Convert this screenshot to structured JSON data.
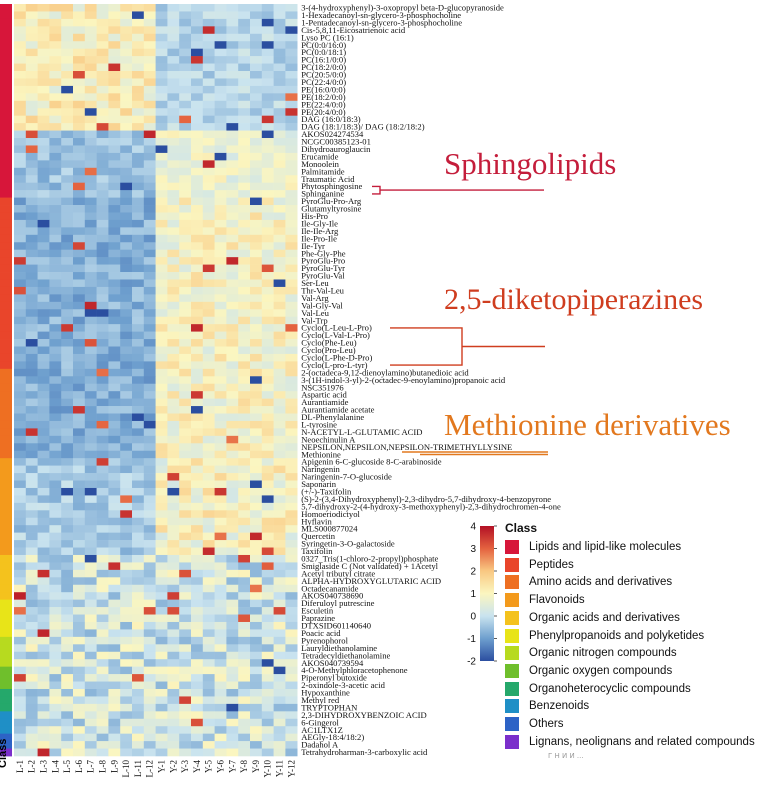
{
  "chart_data": {
    "type": "heatmap",
    "title": "",
    "columns": [
      "L-1",
      "L-2",
      "L-3",
      "L-4",
      "L-5",
      "L-6",
      "L-7",
      "L-8",
      "L-9",
      "L-10",
      "L-11",
      "L-12",
      "Y-1",
      "Y-2",
      "Y-3",
      "Y-4",
      "Y-5",
      "Y-6",
      "Y-7",
      "Y-8",
      "Y-9",
      "Y-10",
      "Y-11",
      "Y-12"
    ],
    "rows": [
      "3-(4-hydroxyphenyl)-3-oxopropyl beta-D-glucopyranoside",
      "1-Hexadecanoyl-sn-glycero-3-phosphocholine",
      "1-Pentadecanoyl-sn-glycero-3-phosphocholine",
      "Cis-5,8,11-Eicosatrienoic acid",
      "Lyso PC (16:1)",
      "PC(0:0/16:0)",
      "PC(0:0/18:1)",
      "PC(16:1/0:0)",
      "PC(18:2/0:0)",
      "PC(20:5/0:0)",
      "PC(22:4/0:0)",
      "PE(16:0/0:0)",
      "PE(18:2/0:0)",
      "PE(22:4/0:0)",
      "PE(20:4/0:0)",
      "DAG (16:0/18:3)",
      "DAG (18:1/18:3)/ DAG (18:2/18:2)",
      "AKOS024274534",
      "NCGC00385123-01",
      "Dihydroauroglaucin",
      "Erucamide",
      "Monoolein",
      "Palmitamide",
      "Traumatic Acid",
      "Phytosphingosine",
      "Sphinganine",
      "PyroGlu-Pro-Arg",
      "Glutamyltyrosine",
      "His-Pro",
      "Ile-Gly-Ile",
      "Ile-Ile-Arg",
      "Ile-Pro-Ile",
      "Ile-Tyr",
      "Phe-Gly-Phe",
      "PyroGlu-Pro",
      "PyroGlu-Tyr",
      "PyroGlu-Val",
      "Ser-Leu",
      "Thr-Val-Leu",
      "Val-Arg",
      "Val-Gly-Val",
      "Val-Leu",
      "Val-Trp",
      "Cyclo(L-Leu-L-Pro)",
      "Cyclo(L-Val-L-Pro)",
      "Cyclo(Phe-Leu)",
      "Cyclo(Pro-Leu)",
      "Cyclo(L-Phe-D-Pro)",
      "Cyclo(L-pro-L-tyr)",
      "2-(octadeca-9,12-dienoylamino)butanedioic acid",
      "3-(1H-indol-3-yl)-2-(octadec-9-enoylamino)propanoic acid",
      "NSC351976",
      "Aspartic acid",
      "Aurantiamide",
      "Aurantiamide acetate",
      "DL-Phenylalanine",
      "L-tyrosine",
      "N-ACETYL-L-GLUTAMIC ACID",
      "Neoechinulin A",
      "NEPSILON,NEPSILON,NEPSILON-TRIMETHYLLYSINE",
      "Methionine",
      "Apigenin 6-C-glucoside 8-C-arabinoside",
      "Naringenin",
      "Naringenin-7-O-glucoside",
      "Saponarin",
      "(+/-)-Taxifolin",
      "(S)-2-(3,4-Dihydroxyphenyl)-2,3-dihydro-5,7-dihydroxy-4-benzopyrone",
      "5,7-dihydroxy-2-(4-hydroxy-3-methoxyphenyl)-2,3-dihydrochromen-4-one",
      "Homoeriodictyol",
      "Hyflavin",
      "MLS000877024",
      "Quercetin",
      "Syringetin-3-O-galactoside",
      "Taxifolin",
      "0327_Tris(1-chloro-2-propyl)phosphate",
      "Smiglaside C (Not validated) + 1Acetyl",
      "Acetyl tributyl citrate",
      "ALPHA-HYDROXYGLUTARIC ACID",
      "Octadecanamide",
      "AKOS040738690",
      "Diferuloyl putrescine",
      "Esculetin",
      "Paprazine",
      "DTXSID601140640",
      "Poacic acid",
      "Pyrenophorol",
      "Lauryldiethanolamine",
      "Tetradecyldiethanolamine",
      "AKOS040739594",
      "4-O-Methylphloracetophenone",
      "Piperonyl butoxide",
      "2-oxindole-3-acetic acid",
      "Hypoxanthine",
      "Methyl red",
      "TRYPTOPHAN",
      "2,3-DIHYDROXYBENZOIC ACID",
      "6-Gingerol",
      "AC1LTX1Z",
      "AEGly-18:4/18:2)",
      "Dadahol A",
      "Tetrahydroharman-3-carboxylic acid"
    ],
    "row_class_index": [
      0,
      0,
      0,
      0,
      0,
      0,
      0,
      0,
      0,
      0,
      0,
      0,
      0,
      0,
      0,
      0,
      0,
      0,
      0,
      0,
      0,
      0,
      0,
      0,
      0,
      0,
      1,
      1,
      1,
      1,
      1,
      1,
      1,
      1,
      1,
      1,
      1,
      1,
      1,
      1,
      1,
      1,
      1,
      1,
      1,
      1,
      1,
      1,
      1,
      2,
      2,
      2,
      2,
      2,
      2,
      2,
      2,
      2,
      2,
      2,
      2,
      3,
      3,
      3,
      3,
      3,
      3,
      3,
      3,
      3,
      3,
      3,
      3,
      3,
      4,
      4,
      4,
      4,
      4,
      4,
      5,
      5,
      5,
      5,
      5,
      6,
      6,
      6,
      6,
      7,
      7,
      7,
      8,
      8,
      8,
      9,
      9,
      9,
      10,
      10,
      11
    ],
    "color_scale": {
      "min": -2,
      "max": 4,
      "ticks": [
        4,
        3,
        2,
        1,
        0,
        -1,
        -2
      ],
      "stops": [
        "#2b4ea0",
        "#6e9fce",
        "#c9e3ef",
        "#fbf6c0",
        "#f9c882",
        "#e4623f",
        "#b31025"
      ]
    },
    "classes": [
      {
        "name": "Lipids and lipid-like molecules",
        "color": "#d7163a"
      },
      {
        "name": "Peptides",
        "color": "#e9452b"
      },
      {
        "name": "Amino acids and derivatives",
        "color": "#ee6f22"
      },
      {
        "name": "Flavonoids",
        "color": "#f39a1c"
      },
      {
        "name": "Organic acids and derivatives",
        "color": "#f4c21d"
      },
      {
        "name": "Phenylpropanoids and polyketides",
        "color": "#e8e418"
      },
      {
        "name": "Organic nitrogen compounds",
        "color": "#b7da1f"
      },
      {
        "name": "Organic oxygen compounds",
        "color": "#6fbf2c"
      },
      {
        "name": "Organoheterocyclic compounds",
        "color": "#25a86b"
      },
      {
        "name": "Benzenoids",
        "color": "#1f8fc6"
      },
      {
        "name": "Others",
        "color": "#2d63c6"
      },
      {
        "name": "Lignans, neolignans and related compounds",
        "color": "#7b2fcb"
      }
    ],
    "legend_title": "Class",
    "side_label": "Class"
  },
  "annotations": {
    "sphingolipids": "Sphingolipids",
    "diketopiperazines": "2,5-diketopiperazines",
    "methionine": "Methionine derivatives",
    "sphingo_color": "#c41d3b",
    "dkp_color": "#cf3d1f",
    "meth_color": "#e2781e"
  },
  "footer_text": "Г Н И И  ..."
}
